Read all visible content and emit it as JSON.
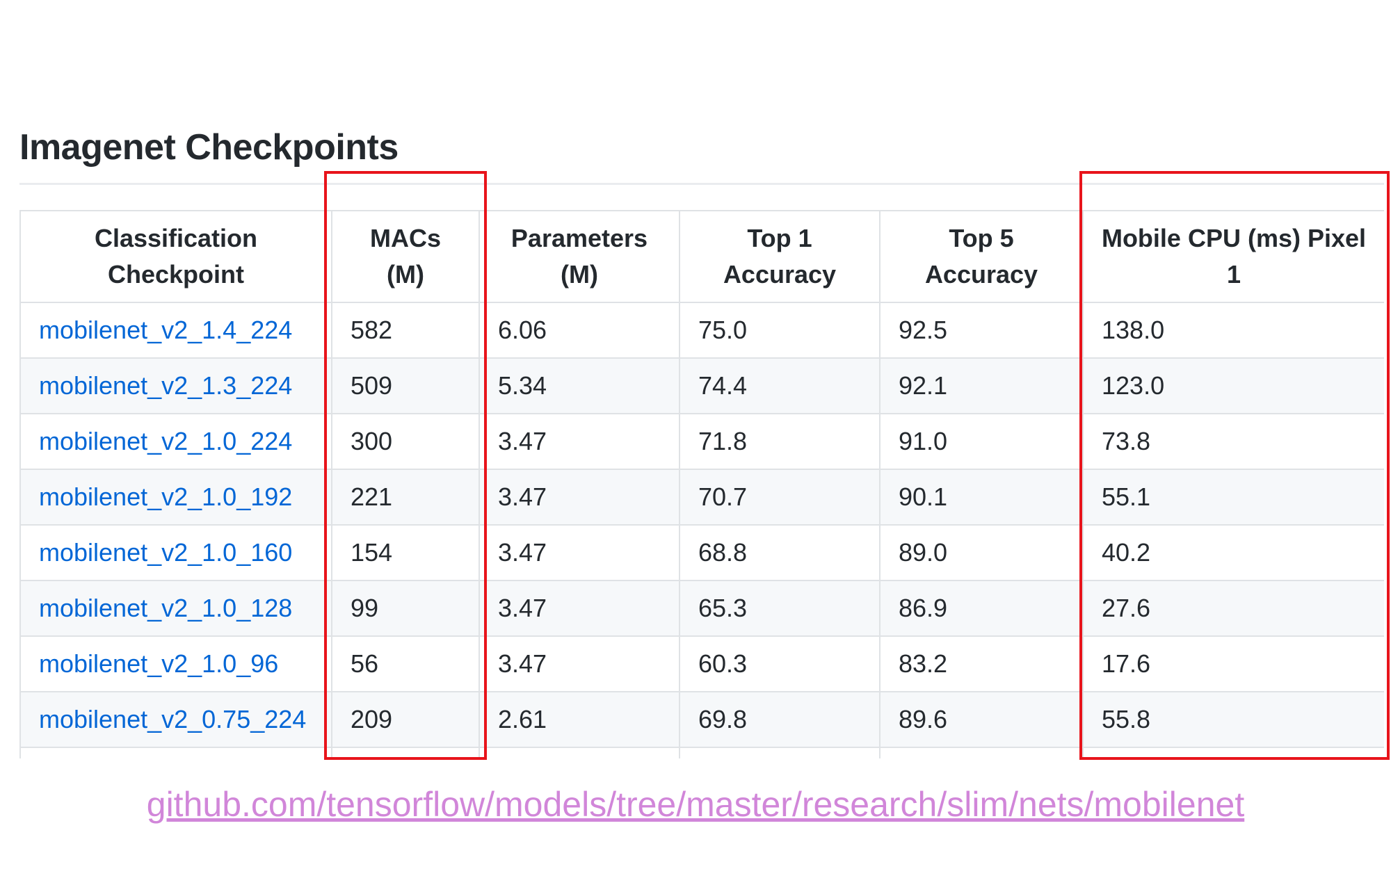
{
  "page_title": "Imagenet Checkpoints",
  "table": {
    "headers": [
      {
        "line1": "Classification",
        "line2": "Checkpoint"
      },
      {
        "line1": "MACs",
        "line2": "(M)"
      },
      {
        "line1": "Parameters",
        "line2": "(M)"
      },
      {
        "line1": "Top 1",
        "line2": "Accuracy"
      },
      {
        "line1": "Top 5",
        "line2": "Accuracy"
      },
      {
        "line1": "Mobile CPU (ms) Pixel",
        "line2": "1"
      }
    ],
    "rows": [
      [
        "mobilenet_v2_1.4_224",
        "582",
        "6.06",
        "75.0",
        "92.5",
        "138.0"
      ],
      [
        "mobilenet_v2_1.3_224",
        "509",
        "5.34",
        "74.4",
        "92.1",
        "123.0"
      ],
      [
        "mobilenet_v2_1.0_224",
        "300",
        "3.47",
        "71.8",
        "91.0",
        "73.8"
      ],
      [
        "mobilenet_v2_1.0_192",
        "221",
        "3.47",
        "70.7",
        "90.1",
        "55.1"
      ],
      [
        "mobilenet_v2_1.0_160",
        "154",
        "3.47",
        "68.8",
        "89.0",
        "40.2"
      ],
      [
        "mobilenet_v2_1.0_128",
        "99",
        "3.47",
        "65.3",
        "86.9",
        "27.6"
      ],
      [
        "mobilenet_v2_1.0_96",
        "56",
        "3.47",
        "60.3",
        "83.2",
        "17.6"
      ],
      [
        "mobilenet_v2_0.75_224",
        "209",
        "2.61",
        "69.8",
        "89.6",
        "55.8"
      ]
    ]
  },
  "highlight_color": "#e8141b",
  "link_color": "#0366d6",
  "source_link_color": "#d186d9",
  "source_link": "github.com/tensorflow/models/tree/master/research/slim/nets/mobilenet"
}
